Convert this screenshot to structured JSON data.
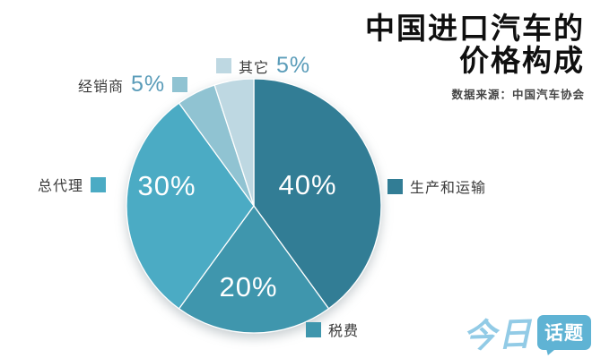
{
  "header": {
    "title_line1": "中国进口汽车的",
    "title_line2": "价格构成",
    "source": "数据来源：中国汽车协会"
  },
  "chart_data": {
    "type": "pie",
    "title": "中国进口汽车的价格构成",
    "source": "数据来源：中国汽车协会",
    "direction": "clockwise",
    "start_angle": "12-oclock",
    "unit": "%",
    "slices": [
      {
        "label": "生产和运输",
        "value": 40,
        "pct_label": "40%",
        "color": "#327d95"
      },
      {
        "label": "税费",
        "value": 20,
        "pct_label": "20%",
        "color": "#3f96ad"
      },
      {
        "label": "总代理",
        "value": 30,
        "pct_label": "30%",
        "color": "#4babc4"
      },
      {
        "label": "经销商",
        "value": 5,
        "pct_label": "5%",
        "color": "#90c3d2"
      },
      {
        "label": "其它",
        "value": 5,
        "pct_label": "5%",
        "color": "#bed8e2"
      }
    ]
  },
  "colors": {
    "callout_pct": "#5a9cb9",
    "logo_text": "#92cbe6",
    "logo_box": "#5fb3d4"
  },
  "logo": {
    "part1": "今日",
    "part2": "话题"
  }
}
